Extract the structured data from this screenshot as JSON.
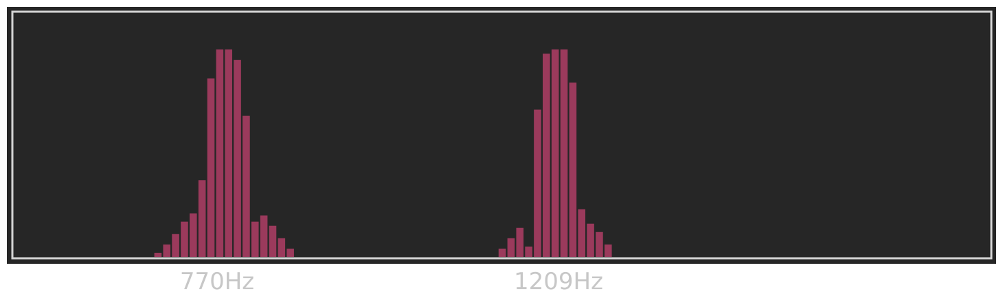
{
  "colors": {
    "background": "#262626",
    "frame": "#d4d4d4",
    "bar": "#9b3a5c",
    "label": "#c7c7c7"
  },
  "chart_data": {
    "type": "bar",
    "title": "",
    "xlabel": "",
    "ylabel": "",
    "ylim": [
      0,
      1
    ],
    "grid": false,
    "tick_labels": [
      "770Hz",
      "1209Hz"
    ],
    "bins": [
      {
        "bin": 16,
        "value": 0.02
      },
      {
        "bin": 17,
        "value": 0.06
      },
      {
        "bin": 18,
        "value": 0.11
      },
      {
        "bin": 19,
        "value": 0.17
      },
      {
        "bin": 20,
        "value": 0.21
      },
      {
        "bin": 21,
        "value": 0.37
      },
      {
        "bin": 22,
        "value": 0.86
      },
      {
        "bin": 23,
        "value": 1.0
      },
      {
        "bin": 24,
        "value": 1.0
      },
      {
        "bin": 25,
        "value": 0.95
      },
      {
        "bin": 26,
        "value": 0.68
      },
      {
        "bin": 27,
        "value": 0.17
      },
      {
        "bin": 28,
        "value": 0.2
      },
      {
        "bin": 29,
        "value": 0.15
      },
      {
        "bin": 30,
        "value": 0.09
      },
      {
        "bin": 31,
        "value": 0.04
      },
      {
        "bin": 55,
        "value": 0.04
      },
      {
        "bin": 56,
        "value": 0.09
      },
      {
        "bin": 57,
        "value": 0.14
      },
      {
        "bin": 58,
        "value": 0.05
      },
      {
        "bin": 59,
        "value": 0.71
      },
      {
        "bin": 60,
        "value": 0.98
      },
      {
        "bin": 61,
        "value": 1.0
      },
      {
        "bin": 62,
        "value": 1.0
      },
      {
        "bin": 63,
        "value": 0.84
      },
      {
        "bin": 64,
        "value": 0.23
      },
      {
        "bin": 65,
        "value": 0.16
      },
      {
        "bin": 66,
        "value": 0.12
      },
      {
        "bin": 67,
        "value": 0.06
      }
    ]
  }
}
